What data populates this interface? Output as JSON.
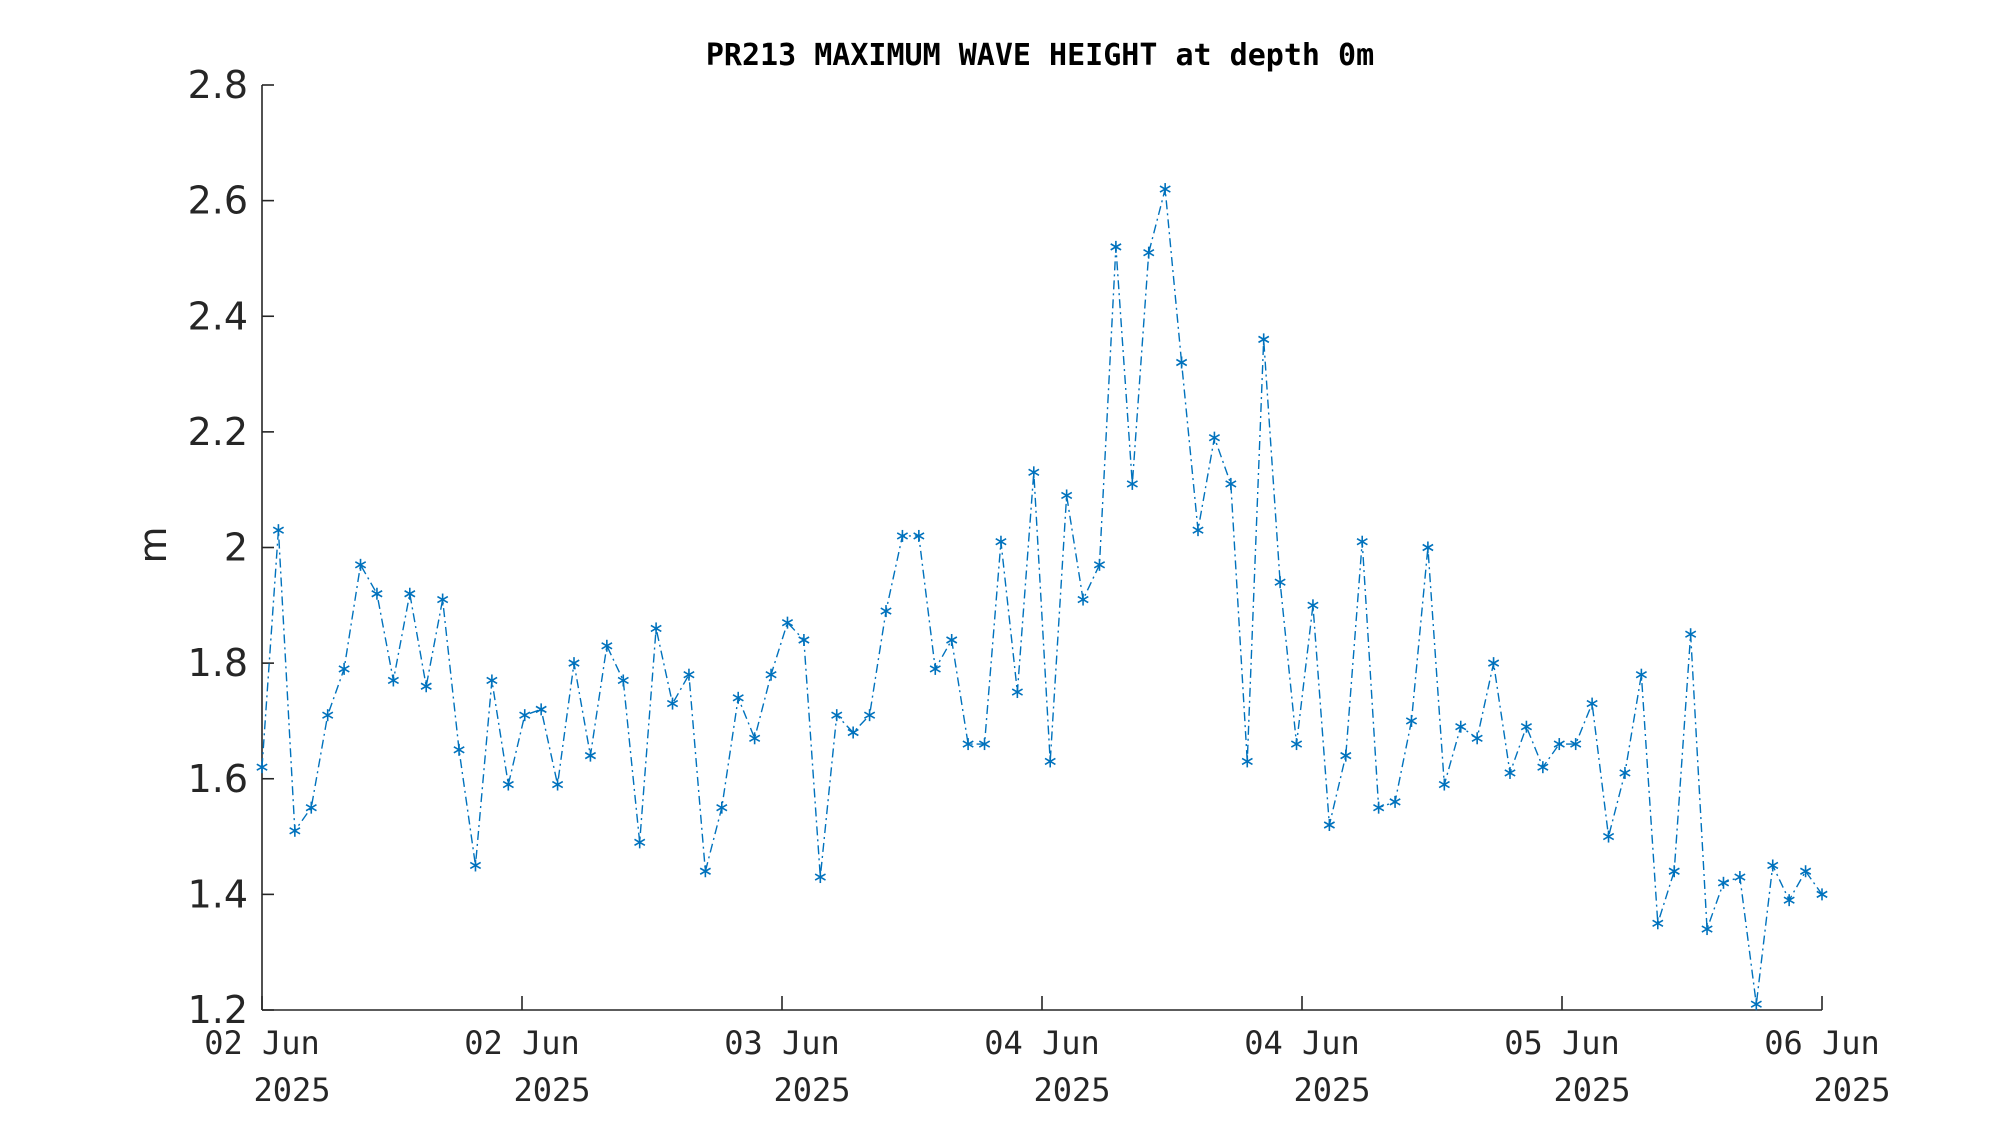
{
  "chart_data": {
    "type": "line",
    "title": "PR213 MAXIMUM WAVE HEIGHT at depth 0m",
    "xlabel": "",
    "ylabel": "m",
    "ylim": [
      1.2,
      2.8
    ],
    "yticks": [
      "1.2",
      "1.4",
      "1.6",
      "1.8",
      "2",
      "2.2",
      "2.4",
      "2.6",
      "2.8"
    ],
    "xticks": [
      {
        "line1": "02 Jun",
        "line2": "2025"
      },
      {
        "line1": "02 Jun",
        "line2": "2025"
      },
      {
        "line1": "03 Jun",
        "line2": "2025"
      },
      {
        "line1": "04 Jun",
        "line2": "2025"
      },
      {
        "line1": "04 Jun",
        "line2": "2025"
      },
      {
        "line1": "05 Jun",
        "line2": "2025"
      },
      {
        "line1": "06 Jun",
        "line2": "2025"
      }
    ],
    "grid": false,
    "marker": "asterisk",
    "line_style": "dash-dot",
    "color": "#0072BD",
    "series": [
      {
        "values": [
          1.62,
          2.03,
          1.51,
          1.55,
          1.71,
          1.79,
          1.97,
          1.92,
          1.77,
          1.92,
          1.76,
          1.91,
          1.65,
          1.45,
          1.77,
          1.59,
          1.71,
          1.72,
          1.59,
          1.8,
          1.64,
          1.83,
          1.77,
          1.49,
          1.86,
          1.73,
          1.78,
          1.44,
          1.55,
          1.74,
          1.67,
          1.78,
          1.87,
          1.84,
          1.43,
          1.71,
          1.68,
          1.71,
          1.89,
          2.02,
          2.02,
          1.79,
          1.84,
          1.66,
          1.66,
          2.01,
          1.75,
          2.13,
          1.63,
          2.09,
          1.91,
          1.97,
          2.52,
          2.11,
          2.51,
          2.62,
          2.32,
          2.03,
          2.19,
          2.11,
          1.63,
          2.36,
          1.94,
          1.66,
          1.9,
          1.52,
          1.64,
          2.01,
          1.55,
          1.56,
          1.7,
          2.0,
          1.59,
          1.69,
          1.67,
          1.8,
          1.61,
          1.69,
          1.62,
          1.66,
          1.66,
          1.73,
          1.5,
          1.61,
          1.78,
          1.35,
          1.44,
          1.85,
          1.34,
          1.42,
          1.43,
          1.21,
          1.45,
          1.39,
          1.44,
          1.4
        ]
      }
    ]
  }
}
